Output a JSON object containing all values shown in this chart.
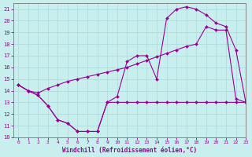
{
  "background_color": "#c8eeed",
  "grid_color": "#b0dddd",
  "line_color": "#990099",
  "xlabel": "Windchill (Refroidissement éolien,°C)",
  "xlim": [
    -0.5,
    23
  ],
  "ylim": [
    10,
    21.5
  ],
  "yticks": [
    10,
    11,
    12,
    13,
    14,
    15,
    16,
    17,
    18,
    19,
    20,
    21
  ],
  "xticks": [
    0,
    1,
    2,
    3,
    4,
    5,
    6,
    7,
    8,
    9,
    10,
    11,
    12,
    13,
    14,
    15,
    16,
    17,
    18,
    19,
    20,
    21,
    22,
    23
  ],
  "line1_x": [
    0,
    1,
    2,
    3,
    4,
    5,
    6,
    7,
    8,
    9,
    10,
    11,
    12,
    13,
    14,
    15,
    16,
    17,
    18,
    19,
    20,
    21,
    22,
    23
  ],
  "line1_y": [
    14.5,
    14.0,
    13.6,
    12.7,
    11.5,
    11.2,
    10.5,
    10.5,
    10.5,
    13.0,
    13.0,
    13.0,
    13.0,
    13.0,
    13.0,
    13.0,
    13.0,
    13.0,
    13.0,
    13.0,
    13.0,
    13.0,
    13.0,
    13.0
  ],
  "line2_x": [
    0,
    1,
    2,
    3,
    4,
    5,
    6,
    7,
    8,
    9,
    10,
    11,
    12,
    13,
    14,
    15,
    16,
    17,
    18,
    19,
    20,
    21,
    22,
    23
  ],
  "line2_y": [
    14.5,
    14.0,
    13.8,
    14.2,
    14.5,
    14.8,
    15.0,
    15.2,
    15.4,
    15.6,
    15.8,
    16.0,
    16.3,
    16.6,
    16.9,
    17.2,
    17.5,
    17.8,
    18.0,
    19.5,
    19.2,
    19.2,
    13.3,
    13.0
  ],
  "line3_x": [
    0,
    1,
    2,
    3,
    4,
    5,
    6,
    7,
    8,
    9,
    10,
    11,
    12,
    13,
    14,
    15,
    16,
    17,
    18,
    19,
    20,
    21,
    22,
    23
  ],
  "line3_y": [
    14.5,
    14.0,
    13.6,
    12.7,
    11.5,
    11.2,
    10.5,
    10.5,
    10.5,
    13.0,
    13.5,
    16.5,
    17.0,
    17.0,
    15.0,
    20.2,
    21.0,
    21.2,
    21.0,
    20.5,
    19.8,
    19.5,
    17.5,
    13.0
  ]
}
